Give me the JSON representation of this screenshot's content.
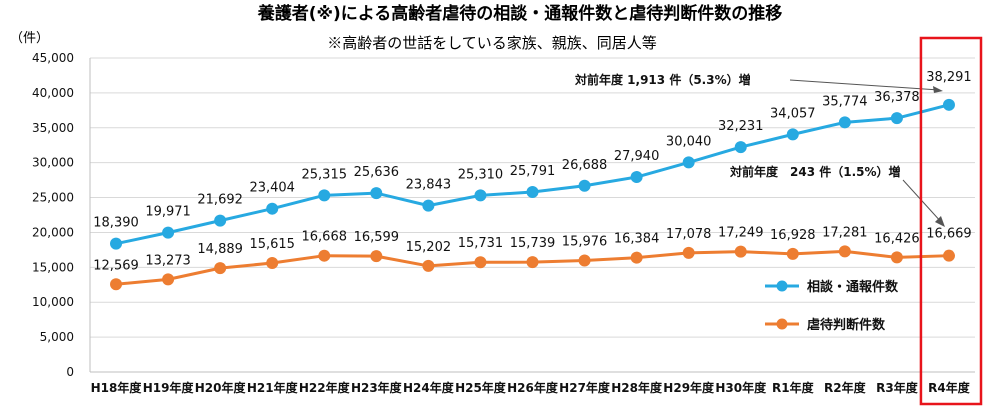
{
  "chart_data": {
    "type": "line",
    "title": "養護者(※)による高齢者虐待の相談・通報件数と虐待判断件数の推移",
    "subtitle": "※高齢者の世話をしている家族、親族、同居人等",
    "ylabel": "（件）",
    "xlabel": "",
    "ylim": [
      0,
      45000
    ],
    "yticks": [
      "0",
      "5,000",
      "10,000",
      "15,000",
      "20,000",
      "25,000",
      "30,000",
      "35,000",
      "40,000",
      "45,000"
    ],
    "categories": [
      "H18年度",
      "H19年度",
      "H20年度",
      "H21年度",
      "H22年度",
      "H23年度",
      "H24年度",
      "H25年度",
      "H26年度",
      "H27年度",
      "H28年度",
      "H29年度",
      "H30年度",
      "R1年度",
      "R2年度",
      "R3年度",
      "R4年度"
    ],
    "series": [
      {
        "name": "相談・通報件数",
        "color": "#27a9e1",
        "values": [
          18390,
          19971,
          21692,
          23404,
          25315,
          25636,
          23843,
          25310,
          25791,
          26688,
          27940,
          30040,
          32231,
          34057,
          35774,
          36378,
          38291
        ],
        "labels": [
          "18,390",
          "19,971",
          "21,692",
          "23,404",
          "25,315",
          "25,636",
          "23,843",
          "25,310",
          "25,791",
          "26,688",
          "27,940",
          "30,040",
          "32,231",
          "34,057",
          "35,774",
          "36,378",
          "38,291"
        ]
      },
      {
        "name": "虐待判断件数",
        "color": "#ed7d31",
        "values": [
          12569,
          13273,
          14889,
          15615,
          16668,
          16599,
          15202,
          15731,
          15739,
          15976,
          16384,
          17078,
          17249,
          16928,
          17281,
          16426,
          16669
        ],
        "labels": [
          "12,569",
          "13,273",
          "14,889",
          "15,615",
          "16,668",
          "16,599",
          "15,202",
          "15,731",
          "15,739",
          "15,976",
          "16,384",
          "17,078",
          "17,249",
          "16,928",
          "17,281",
          "16,426",
          "16,669"
        ]
      }
    ],
    "annotations": [
      {
        "text": "対前年度 1,913 件（5.3%）増"
      },
      {
        "text": "対前年度　243 件（1.5%）増"
      }
    ],
    "highlight_color": "#e8141b",
    "grid": true,
    "legend_position": "right"
  }
}
